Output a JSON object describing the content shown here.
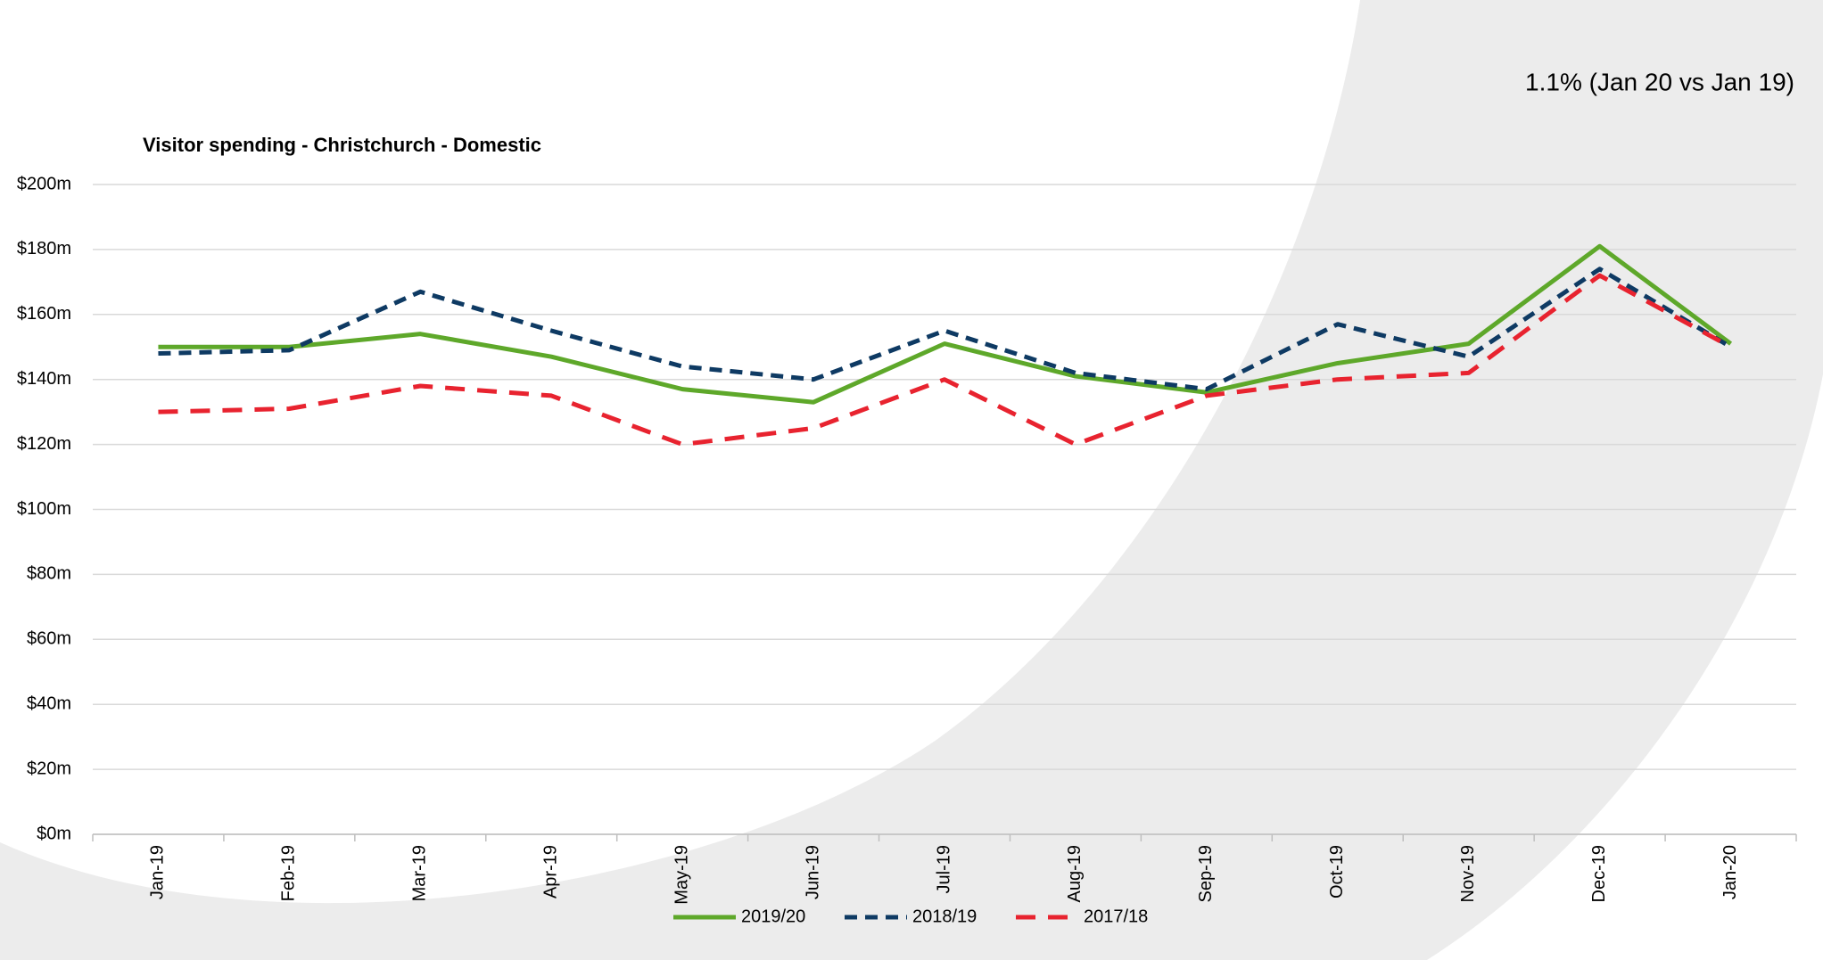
{
  "chart_data": {
    "type": "line",
    "title": "Visitor spending - Christchurch - Domestic",
    "annotation": "1.1% (Jan 20 vs Jan 19)",
    "categories": [
      "Jan-19",
      "Feb-19",
      "Mar-19",
      "Apr-19",
      "May-19",
      "Jun-19",
      "Jul-19",
      "Aug-19",
      "Sep-19",
      "Oct-19",
      "Nov-19",
      "Dec-19",
      "Jan-20"
    ],
    "series": [
      {
        "name": "2019/20",
        "color": "#5ea82a",
        "dash": "solid",
        "values": [
          150,
          150,
          154,
          147,
          137,
          133,
          151,
          141,
          136,
          145,
          151,
          181,
          151
        ]
      },
      {
        "name": "2018/19",
        "color": "#0e3a63",
        "dash": "dashed",
        "values": [
          148,
          149,
          167,
          155,
          144,
          140,
          155,
          142,
          137,
          157,
          147,
          174,
          150
        ]
      },
      {
        "name": "2017/18",
        "color": "#e8232f",
        "dash": "dashed",
        "values": [
          130,
          131,
          138,
          135,
          120,
          125,
          140,
          120,
          135,
          140,
          142,
          172,
          150
        ]
      }
    ],
    "ylim": [
      0,
      200
    ],
    "yticks": [
      {
        "value": 0,
        "label": "$0m"
      },
      {
        "value": 20,
        "label": "$20m"
      },
      {
        "value": 40,
        "label": "$40m"
      },
      {
        "value": 60,
        "label": "$60m"
      },
      {
        "value": 80,
        "label": "$80m"
      },
      {
        "value": 100,
        "label": "$100m"
      },
      {
        "value": 120,
        "label": "$120m"
      },
      {
        "value": 140,
        "label": "$140m"
      },
      {
        "value": 160,
        "label": "$160m"
      },
      {
        "value": 180,
        "label": "$180m"
      },
      {
        "value": 200,
        "label": "$200m"
      }
    ],
    "grid": true,
    "legend": "bottom"
  }
}
